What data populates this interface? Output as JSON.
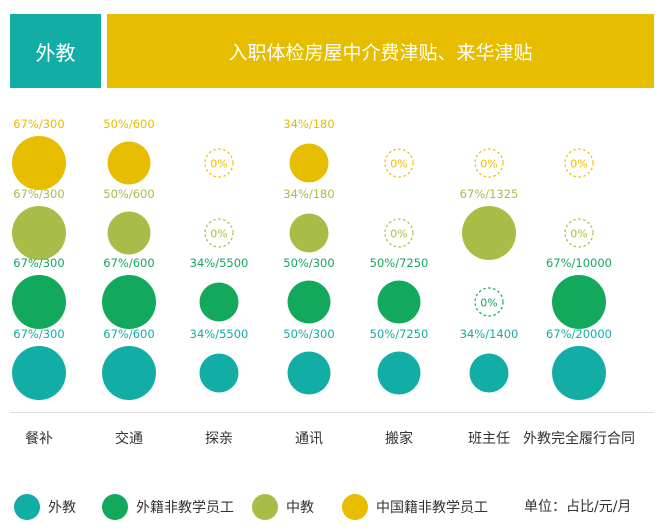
{
  "header": {
    "tag_label": "外教",
    "title": "入职体检房屋中介费津贴、来华津贴"
  },
  "colors": {
    "foreign_teacher": "#12ada5",
    "foreign_staff": "#13a95d",
    "chinese_teacher": "#a8bd47",
    "chinese_staff": "#e7bd00",
    "tag_bg": "#12ada5",
    "banner_bg": "#e7bd00"
  },
  "chart_data": {
    "type": "bubble-matrix",
    "categories": [
      "餐补",
      "交通",
      "探亲",
      "通讯",
      "搬家",
      "班主任",
      "外教完全履行合同"
    ],
    "series": [
      {
        "name": "中国籍非教学员工",
        "color": "#e7bd00",
        "points": [
          {
            "label": "67%/300",
            "pct": 67,
            "amount": 300
          },
          {
            "label": "50%/600",
            "pct": 50,
            "amount": 600
          },
          {
            "label": "0%",
            "pct": 0,
            "amount": null
          },
          {
            "label": "34%/180",
            "pct": 34,
            "amount": 180
          },
          {
            "label": "0%",
            "pct": 0,
            "amount": null
          },
          {
            "label": "0%",
            "pct": 0,
            "amount": null
          },
          {
            "label": "0%",
            "pct": 0,
            "amount": null
          }
        ]
      },
      {
        "name": "中教",
        "color": "#a8bd47",
        "points": [
          {
            "label": "67%/300",
            "pct": 67,
            "amount": 300
          },
          {
            "label": "50%/600",
            "pct": 50,
            "amount": 600
          },
          {
            "label": "0%",
            "pct": 0,
            "amount": null
          },
          {
            "label": "34%/180",
            "pct": 34,
            "amount": 180
          },
          {
            "label": "0%",
            "pct": 0,
            "amount": null
          },
          {
            "label": "67%/1325",
            "pct": 67,
            "amount": 1325
          },
          {
            "label": "0%",
            "pct": 0,
            "amount": null
          }
        ]
      },
      {
        "name": "外籍非教学员工",
        "color": "#13a95d",
        "points": [
          {
            "label": "67%/300",
            "pct": 67,
            "amount": 300
          },
          {
            "label": "67%/600",
            "pct": 67,
            "amount": 600
          },
          {
            "label": "34%/5500",
            "pct": 34,
            "amount": 5500
          },
          {
            "label": "50%/300",
            "pct": 50,
            "amount": 300
          },
          {
            "label": "50%/7250",
            "pct": 50,
            "amount": 7250
          },
          {
            "label": "0%",
            "pct": 0,
            "amount": null
          },
          {
            "label": "67%/10000",
            "pct": 67,
            "amount": 10000
          }
        ]
      },
      {
        "name": "外教",
        "color": "#12ada5",
        "points": [
          {
            "label": "67%/300",
            "pct": 67,
            "amount": 300
          },
          {
            "label": "67%/600",
            "pct": 67,
            "amount": 600
          },
          {
            "label": "34%/5500",
            "pct": 34,
            "amount": 5500
          },
          {
            "label": "50%/300",
            "pct": 50,
            "amount": 300
          },
          {
            "label": "50%/7250",
            "pct": 50,
            "amount": 7250
          },
          {
            "label": "34%/1400",
            "pct": 34,
            "amount": 1400
          },
          {
            "label": "67%/20000",
            "pct": 67,
            "amount": 20000
          }
        ]
      }
    ]
  },
  "legend": {
    "items": [
      {
        "label": "外教",
        "color": "#12ada5"
      },
      {
        "label": "外籍非教学员工",
        "color": "#13a95d"
      },
      {
        "label": "中教",
        "color": "#a8bd47"
      },
      {
        "label": "中国籍非教学员工",
        "color": "#e7bd00"
      }
    ],
    "unit_label": "单位：占比/元/月"
  }
}
